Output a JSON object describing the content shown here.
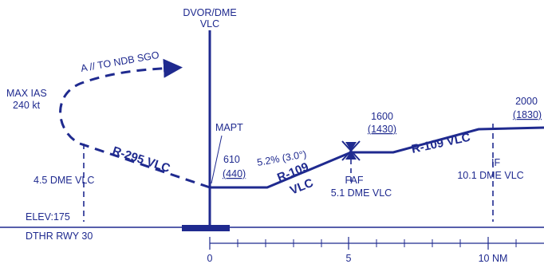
{
  "colors": {
    "ink": "#1f2a8f",
    "background": "#ffffff"
  },
  "navaid": {
    "type": "DVOR/DME",
    "ident": "VLC"
  },
  "missed_approach": {
    "label": "A // TO NDB SGO",
    "max_ias_label": "MAX IAS",
    "max_ias_value": "240 kt"
  },
  "mapt": {
    "label": "MAPT",
    "altitude": "610",
    "height": "(440)"
  },
  "descent": {
    "gradient": "5.2% (3.0°)"
  },
  "faf": {
    "label": "FAF",
    "dme": "5.1 DME VLC",
    "altitude": "1600",
    "height": "(1430)"
  },
  "if": {
    "label": "IF",
    "dme": "10.1 DME VLC",
    "altitude": "2000",
    "height": "(1830)"
  },
  "radials": {
    "outbound": "R-295 VLC",
    "final_line1": "R-109",
    "final_line2": "VLC",
    "intermediate": "R-109 VLC"
  },
  "fix_45": {
    "dme": "4.5 DME VLC"
  },
  "aerodrome": {
    "elevation": "ELEV:175",
    "threshold": "DTHR RWY 30"
  },
  "scale": {
    "ticks": [
      "0",
      "5",
      "10 NM"
    ]
  }
}
